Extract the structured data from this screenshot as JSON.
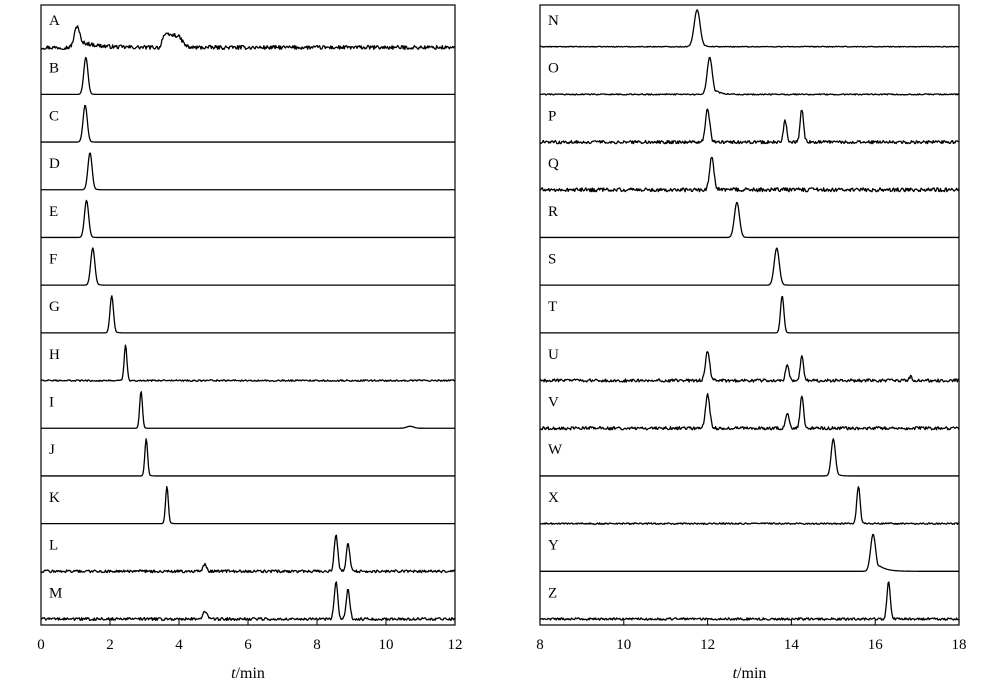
{
  "chart_data": [
    {
      "type": "line",
      "xlabel_italic": "t",
      "xlabel_unit": "/min",
      "xlim": [
        0,
        12
      ],
      "x_ticks": [
        0,
        2,
        4,
        6,
        8,
        10,
        12
      ],
      "grid": false,
      "series": [
        {
          "name": "A",
          "peaks": [
            {
              "x": 1.05,
              "h": 0.55,
              "w": 0.08,
              "tail": 0.45
            }
          ],
          "plateau": {
            "start": 3.5,
            "end": 4.1,
            "h": 0.32
          },
          "noise": 0.05,
          "baseline_drift": -0.02
        },
        {
          "name": "B",
          "peaks": [
            {
              "x": 1.3,
              "h": 0.95,
              "w": 0.06,
              "tail": 0.05
            }
          ],
          "noise": 0.0
        },
        {
          "name": "C",
          "peaks": [
            {
              "x": 1.28,
              "h": 0.95,
              "w": 0.06,
              "tail": 0.05
            }
          ],
          "noise": 0.0
        },
        {
          "name": "D",
          "peaks": [
            {
              "x": 1.42,
              "h": 0.95,
              "w": 0.06,
              "tail": 0.06
            }
          ],
          "noise": 0.0
        },
        {
          "name": "E",
          "peaks": [
            {
              "x": 1.32,
              "h": 0.95,
              "w": 0.06,
              "tail": 0.05
            }
          ],
          "noise": 0.0
        },
        {
          "name": "F",
          "peaks": [
            {
              "x": 1.5,
              "h": 0.95,
              "w": 0.06,
              "tail": 0.06
            }
          ],
          "noise": 0.0
        },
        {
          "name": "G",
          "peaks": [
            {
              "x": 2.05,
              "h": 0.95,
              "w": 0.05,
              "tail": 0.05
            }
          ],
          "noise": 0.0
        },
        {
          "name": "H",
          "peaks": [
            {
              "x": 2.45,
              "h": 0.9,
              "w": 0.04,
              "tail": 0.03
            }
          ],
          "noise": 0.02
        },
        {
          "name": "I",
          "peaks": [
            {
              "x": 2.9,
              "h": 0.95,
              "w": 0.04,
              "tail": 0.03
            },
            {
              "x": 10.7,
              "h": 0.05,
              "w": 0.1,
              "tail": 0.1
            }
          ],
          "noise": 0.0
        },
        {
          "name": "J",
          "peaks": [
            {
              "x": 3.05,
              "h": 0.95,
              "w": 0.04,
              "tail": 0.04
            }
          ],
          "noise": 0.0
        },
        {
          "name": "K",
          "peaks": [
            {
              "x": 3.65,
              "h": 0.95,
              "w": 0.04,
              "tail": 0.04
            }
          ],
          "noise": 0.0
        },
        {
          "name": "L",
          "peaks": [
            {
              "x": 4.75,
              "h": 0.18,
              "w": 0.05,
              "tail": 0.05
            },
            {
              "x": 8.55,
              "h": 0.95,
              "w": 0.05,
              "tail": 0.04
            },
            {
              "x": 8.9,
              "h": 0.7,
              "w": 0.05,
              "tail": 0.04
            }
          ],
          "noise": 0.035
        },
        {
          "name": "M",
          "peaks": [
            {
              "x": 4.75,
              "h": 0.2,
              "w": 0.06,
              "tail": 0.05
            },
            {
              "x": 8.55,
              "h": 0.95,
              "w": 0.05,
              "tail": 0.04
            },
            {
              "x": 8.9,
              "h": 0.78,
              "w": 0.05,
              "tail": 0.04
            }
          ],
          "noise": 0.035
        }
      ]
    },
    {
      "type": "line",
      "xlabel_italic": "t",
      "xlabel_unit": "/min",
      "xlim": [
        8,
        18
      ],
      "x_ticks": [
        8,
        10,
        12,
        14,
        16,
        18
      ],
      "grid": false,
      "series": [
        {
          "name": "N",
          "peaks": [
            {
              "x": 11.75,
              "h": 0.95,
              "w": 0.07,
              "tail": 0.08
            }
          ],
          "noise": 0.01
        },
        {
          "name": "O",
          "peaks": [
            {
              "x": 12.05,
              "h": 0.95,
              "w": 0.06,
              "tail": 0.12
            }
          ],
          "noise": 0.015
        },
        {
          "name": "P",
          "peaks": [
            {
              "x": 12.0,
              "h": 0.85,
              "w": 0.05,
              "tail": 0.04
            },
            {
              "x": 13.85,
              "h": 0.55,
              "w": 0.04,
              "tail": 0.03
            },
            {
              "x": 14.25,
              "h": 0.85,
              "w": 0.04,
              "tail": 0.03
            }
          ],
          "noise": 0.04
        },
        {
          "name": "Q",
          "peaks": [
            {
              "x": 12.1,
              "h": 0.85,
              "w": 0.05,
              "tail": 0.06
            }
          ],
          "noise": 0.05
        },
        {
          "name": "R",
          "peaks": [
            {
              "x": 12.7,
              "h": 0.9,
              "w": 0.06,
              "tail": 0.05
            }
          ],
          "noise": 0.0
        },
        {
          "name": "S",
          "peaks": [
            {
              "x": 13.65,
              "h": 0.95,
              "w": 0.06,
              "tail": 0.05
            }
          ],
          "noise": 0.0
        },
        {
          "name": "T",
          "peaks": [
            {
              "x": 13.78,
              "h": 0.95,
              "w": 0.04,
              "tail": 0.03
            }
          ],
          "noise": 0.0
        },
        {
          "name": "U",
          "peaks": [
            {
              "x": 12.0,
              "h": 0.75,
              "w": 0.05,
              "tail": 0.05
            },
            {
              "x": 13.9,
              "h": 0.4,
              "w": 0.04,
              "tail": 0.03
            },
            {
              "x": 14.25,
              "h": 0.6,
              "w": 0.04,
              "tail": 0.03
            },
            {
              "x": 16.85,
              "h": 0.12,
              "w": 0.03,
              "tail": 0.02
            }
          ],
          "noise": 0.04
        },
        {
          "name": "V",
          "peaks": [
            {
              "x": 12.0,
              "h": 0.85,
              "w": 0.05,
              "tail": 0.04
            },
            {
              "x": 13.9,
              "h": 0.4,
              "w": 0.04,
              "tail": 0.03
            },
            {
              "x": 14.25,
              "h": 0.85,
              "w": 0.04,
              "tail": 0.03
            }
          ],
          "noise": 0.04
        },
        {
          "name": "W",
          "peaks": [
            {
              "x": 15.0,
              "h": 0.95,
              "w": 0.05,
              "tail": 0.06
            }
          ],
          "noise": 0.0
        },
        {
          "name": "X",
          "peaks": [
            {
              "x": 15.6,
              "h": 0.95,
              "w": 0.04,
              "tail": 0.04
            }
          ],
          "noise": 0.02
        },
        {
          "name": "Y",
          "peaks": [
            {
              "x": 15.95,
              "h": 0.95,
              "w": 0.06,
              "tail": 0.18
            }
          ],
          "noise": 0.0
        },
        {
          "name": "Z",
          "peaks": [
            {
              "x": 16.32,
              "h": 0.95,
              "w": 0.04,
              "tail": 0.04
            }
          ],
          "noise": 0.03
        }
      ]
    }
  ]
}
